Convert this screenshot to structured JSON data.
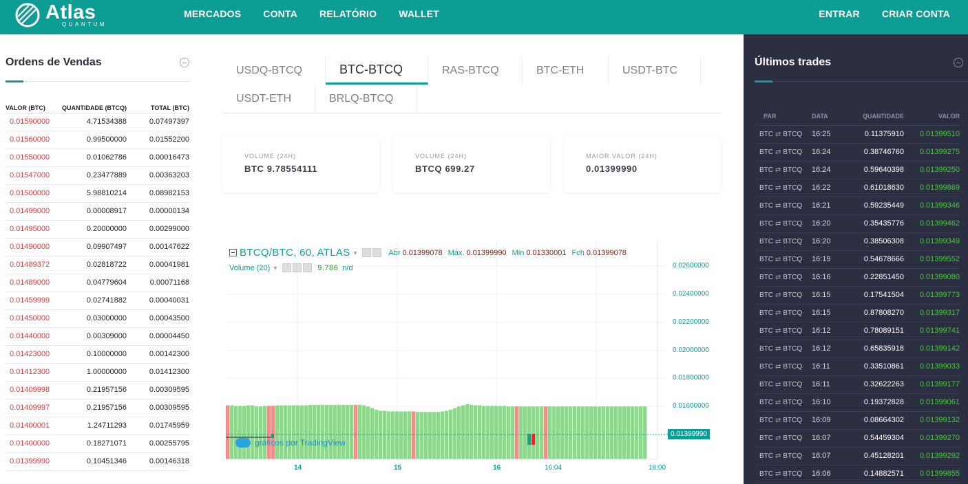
{
  "header": {
    "logo_text": "Atlas",
    "logo_subtext": "QUANTUM",
    "nav_left": [
      "MERCADOS",
      "CONTA",
      "RELATÓRIO",
      "WALLET"
    ],
    "nav_right": [
      "ENTRAR",
      "CRIAR CONTA"
    ]
  },
  "sell_orders": {
    "title": "Ordens de Vendas",
    "columns": [
      "VALOR (BTC)",
      "QUANTIDADE (BTCQ)",
      "TOTAL (BTC)"
    ],
    "rows": [
      [
        "0.01590000",
        "4.71534388",
        "0.07497397"
      ],
      [
        "0.01560000",
        "0.99500000",
        "0.01552200"
      ],
      [
        "0.01550000",
        "0.01062786",
        "0.00016473"
      ],
      [
        "0.01547000",
        "0.23477889",
        "0.00363203"
      ],
      [
        "0.01500000",
        "5.98810214",
        "0.08982153"
      ],
      [
        "0.01499000",
        "0.00008917",
        "0.00000134"
      ],
      [
        "0.01495000",
        "0.20000000",
        "0.00299000"
      ],
      [
        "0.01490000",
        "0.09907497",
        "0.00147622"
      ],
      [
        "0.01489372",
        "0.02818722",
        "0.00041981"
      ],
      [
        "0.01489000",
        "0.04779604",
        "0.00071168"
      ],
      [
        "0.01459999",
        "0.02741882",
        "0.00040031"
      ],
      [
        "0.01450000",
        "0.03000000",
        "0.00043500"
      ],
      [
        "0.01440000",
        "0.00309000",
        "0.00004450"
      ],
      [
        "0.01423000",
        "0.10000000",
        "0.00142300"
      ],
      [
        "0.01412300",
        "1.00000000",
        "0.01412300"
      ],
      [
        "0.01409998",
        "0.21957156",
        "0.00309595"
      ],
      [
        "0.01409997",
        "0.21957156",
        "0.00309595"
      ],
      [
        "0.01400001",
        "1.24711293",
        "0.01745959"
      ],
      [
        "0.01400000",
        "0.18271071",
        "0.00255795"
      ],
      [
        "0.01399990",
        "0.10451346",
        "0.00146318"
      ]
    ]
  },
  "market_tabs": {
    "items": [
      "USDQ-BTCQ",
      "BTC-BTCQ",
      "RAS-BTCQ",
      "BTC-ETH",
      "USDT-BTC",
      "USDT-ETH",
      "BRLQ-BTCQ"
    ],
    "active": "BTC-BTCQ"
  },
  "stats": [
    {
      "label": "VOLUME (24H)",
      "value": "BTC 9.78554111"
    },
    {
      "label": "VOLUME (24H)",
      "value": "BTCQ 699.27"
    },
    {
      "label": "MAIOR VALOR (24H)",
      "value": "0.01399990"
    }
  ],
  "chart": {
    "symbol": "BTCQ/BTC, 60, ATLAS",
    "open_label": "Abr",
    "open": "0.01399078",
    "high_label": "Máx.",
    "high": "0.01399990",
    "low_label": "Min",
    "low": "0.01330001",
    "close_label": "Fch",
    "close": "0.01399078",
    "volume_label": "Volume (20)",
    "volume_value": "9.786",
    "volume_na": "n/d",
    "last_price": "0.01399990",
    "branding": "gráficos por TradingView",
    "y_ticks": [
      "0.02600000",
      "0.02400000",
      "0.02200000",
      "0.02000000",
      "0.01800000",
      "0.01600000"
    ],
    "x_ticks": [
      "14",
      "15",
      "16",
      "16:04",
      "18:00"
    ],
    "colors": {
      "up": "#8fd68f",
      "down": "#f08c8c",
      "accent": "#0c9d95"
    }
  },
  "chart_data": {
    "type": "bar",
    "title": "BTCQ/BTC, 60, ATLAS",
    "ylabel": "",
    "xlabel": "",
    "ylim": [
      0.013,
      0.027
    ],
    "x_ticks": [
      "14",
      "15",
      "16",
      "16:04",
      "18:00"
    ],
    "last_price": 0.0139999,
    "volume_series": [
      {
        "name": "Volume (20)",
        "values": [
          9.8,
          9.8,
          9.7,
          9.7,
          9.7,
          9.8,
          9.8,
          9.6,
          9.6,
          9.7,
          9.7,
          9.7,
          9.8,
          9.8,
          9.8,
          9.8,
          9.8,
          9.8,
          9.8,
          9.8,
          9.9,
          9.9,
          9.9,
          9.9,
          9.9,
          9.9,
          9.9,
          9.9,
          9.9,
          9.9,
          9.9,
          9.9,
          9.9,
          9.8,
          9.6,
          9.3,
          9.0,
          8.8,
          8.8,
          8.7,
          8.7,
          8.7,
          8.7,
          8.7,
          8.7,
          8.7,
          8.6,
          8.6,
          8.6,
          8.6,
          8.6,
          8.6,
          8.7,
          8.8,
          9.0,
          9.3,
          9.6,
          9.8,
          10.0,
          9.9,
          9.8,
          9.8,
          9.7,
          9.7,
          9.7,
          9.7,
          9.7,
          9.7,
          9.6,
          9.6,
          9.6,
          9.6,
          9.6,
          9.6,
          9.6,
          9.6,
          9.6,
          9.6,
          9.6,
          9.6,
          9.6,
          9.6,
          9.6,
          9.6,
          9.6,
          9.6,
          9.6,
          9.6,
          9.6,
          9.6,
          9.6,
          9.6,
          9.6,
          9.6,
          9.6,
          9.6,
          9.6,
          9.6,
          9.6,
          9.6,
          9.6,
          9.6
        ]
      }
    ],
    "red_bars": [
      0,
      10,
      11,
      31,
      45,
      70,
      77
    ]
  },
  "trades": {
    "title": "Últimos trades",
    "columns": [
      "PAR",
      "DATA",
      "QUANTIDADE",
      "VALOR"
    ],
    "pair_base": "BTC",
    "pair_quote": "BTCQ",
    "rows": [
      [
        "16:25",
        "0.11375910",
        "0.01399510"
      ],
      [
        "16:24",
        "0.38746760",
        "0.01399275"
      ],
      [
        "16:24",
        "0.59640398",
        "0.01399250"
      ],
      [
        "16:22",
        "0.61018630",
        "0.01399869"
      ],
      [
        "16:21",
        "0.59235449",
        "0.01399346"
      ],
      [
        "16:20",
        "0.35435776",
        "0.01399462"
      ],
      [
        "16:20",
        "0.38506308",
        "0.01399349"
      ],
      [
        "16:19",
        "0.54678666",
        "0.01399552"
      ],
      [
        "16:16",
        "0.22851450",
        "0.01399080"
      ],
      [
        "16:15",
        "0.17541504",
        "0.01399773"
      ],
      [
        "16:15",
        "0.87808270",
        "0.01399317"
      ],
      [
        "16:12",
        "0.78089151",
        "0.01399741"
      ],
      [
        "16:12",
        "0.65835918",
        "0.01399142"
      ],
      [
        "16:11",
        "0.33510861",
        "0.01399033"
      ],
      [
        "16:11",
        "0.32622263",
        "0.01399177"
      ],
      [
        "16:10",
        "0.19372828",
        "0.01399061"
      ],
      [
        "16:09",
        "0.08664302",
        "0.01399132"
      ],
      [
        "16:07",
        "0.54459304",
        "0.01399270"
      ],
      [
        "16:07",
        "0.45128201",
        "0.01399292"
      ],
      [
        "16:06",
        "0.14882571",
        "0.01399855"
      ]
    ]
  }
}
